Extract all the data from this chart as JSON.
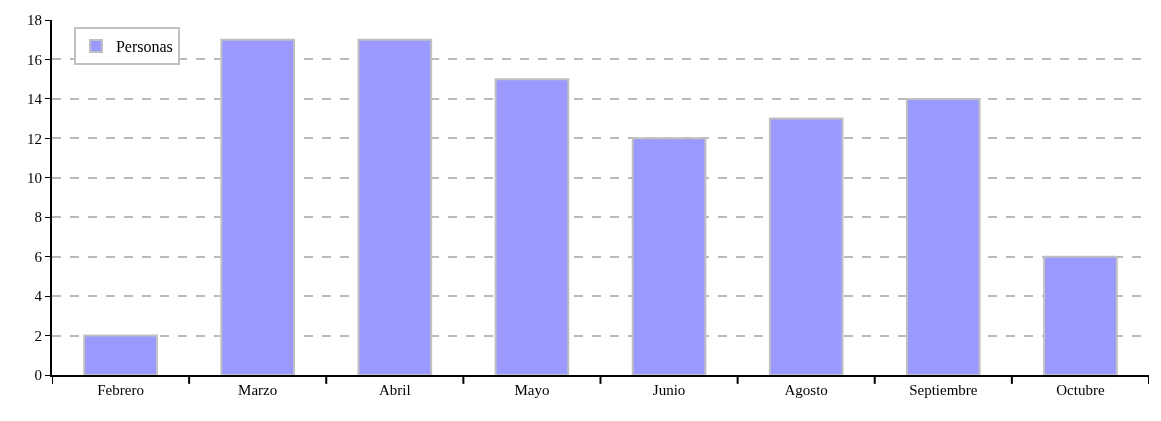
{
  "chart_data": {
    "type": "bar",
    "categories": [
      "Febrero",
      "Marzo",
      "Abril",
      "Mayo",
      "Junio",
      "Agosto",
      "Septiembre",
      "Octubre"
    ],
    "series": [
      {
        "name": "Personas",
        "color": "#9999ff",
        "values": [
          2,
          17,
          17,
          15,
          12,
          13,
          14,
          6
        ]
      }
    ],
    "ylim": [
      0,
      18
    ],
    "yticks": [
      0,
      2,
      4,
      6,
      8,
      10,
      12,
      14,
      16,
      18
    ],
    "grid": "y",
    "legend": "top left"
  }
}
